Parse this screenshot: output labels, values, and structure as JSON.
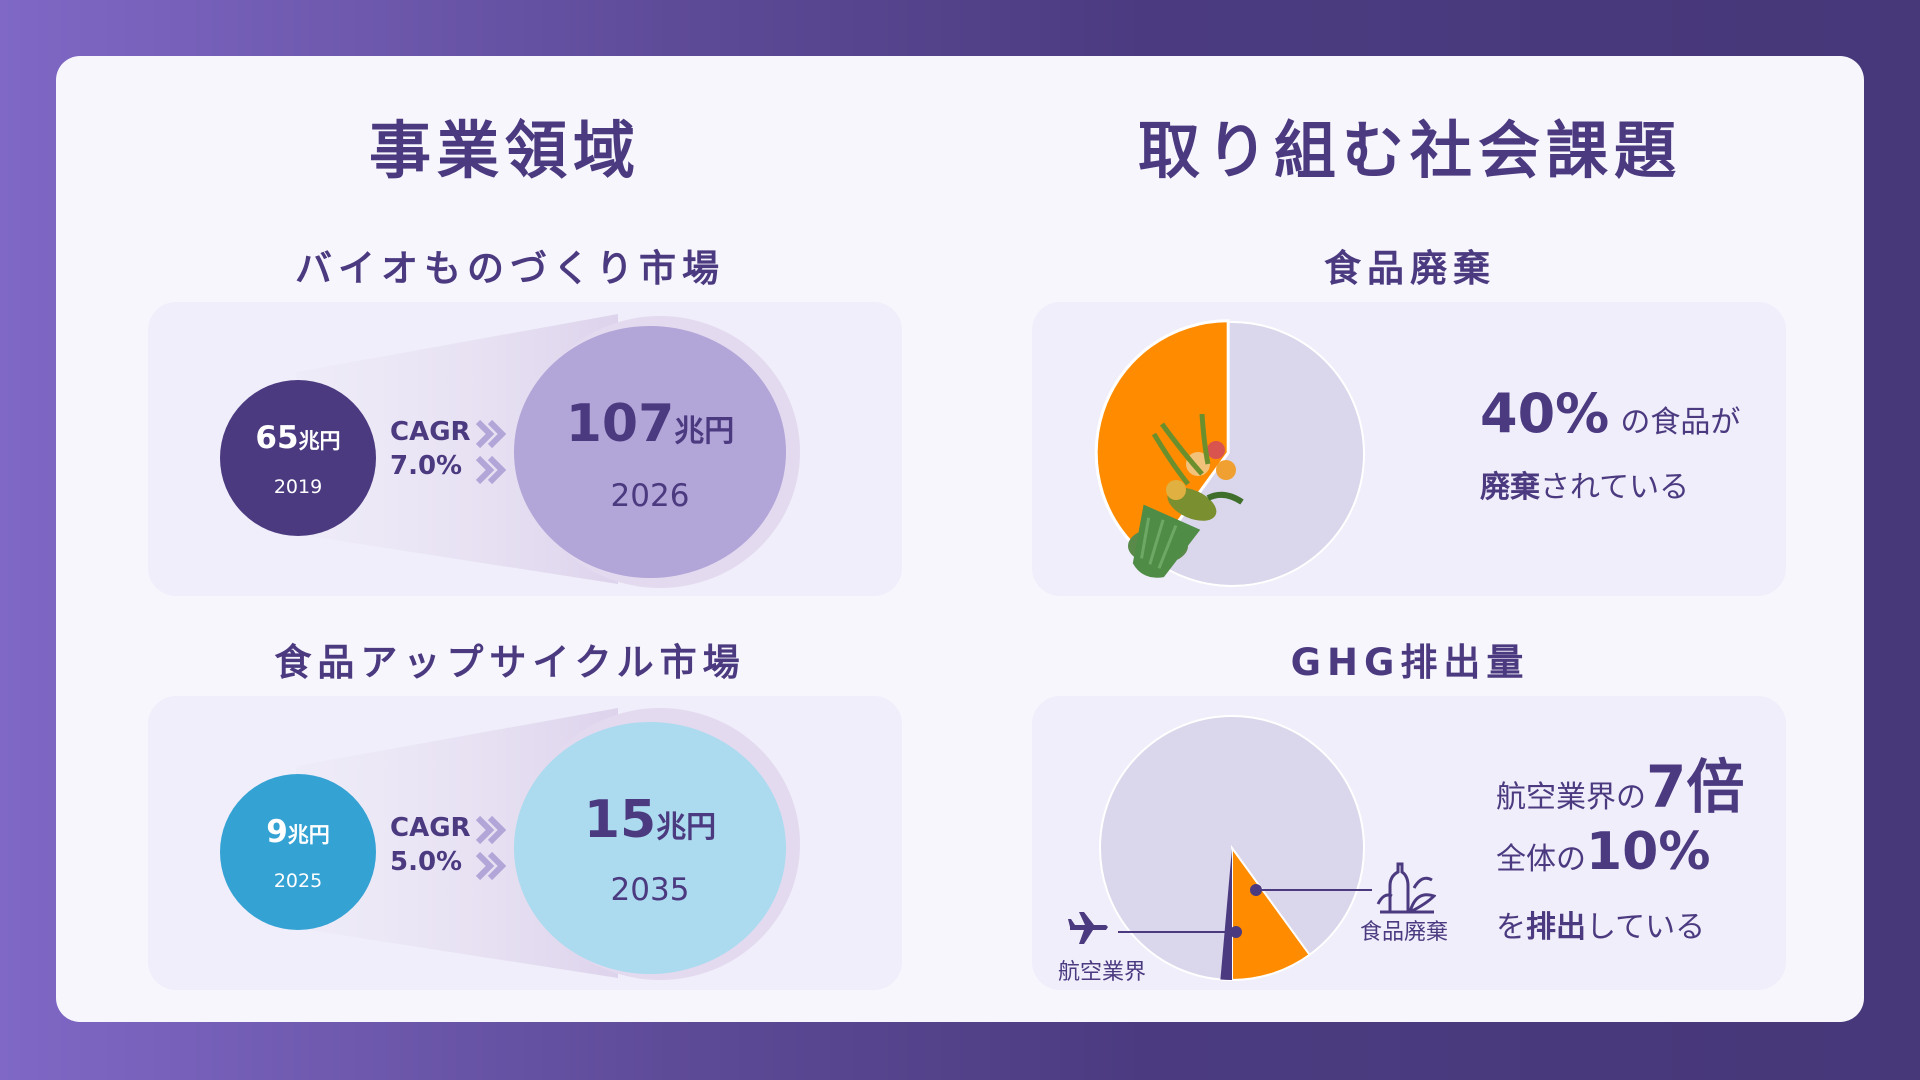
{
  "left": {
    "title": "事業領域",
    "bio": {
      "title": "バイオものづくり市場",
      "start_value": "65",
      "start_unit": "兆円",
      "start_year": "2019",
      "cagr_label": "CAGR",
      "cagr_value": "7.0%",
      "end_value": "107",
      "end_unit": "兆円",
      "end_year": "2026"
    },
    "upcycle": {
      "title": "食品アップサイクル市場",
      "start_value": "9",
      "start_unit": "兆円",
      "start_year": "2025",
      "cagr_label": "CAGR",
      "cagr_value": "5.0%",
      "end_value": "15",
      "end_unit": "兆円",
      "end_year": "2035"
    }
  },
  "right": {
    "title": "取り組む社会課題",
    "food_waste": {
      "title": "食品廃棄",
      "percent": "40%",
      "text1": "の食品が",
      "bold2": "廃棄",
      "text2": "されている",
      "share": 0.4
    },
    "ghg": {
      "title": "GHG排出量",
      "line1_text": "航空業界の",
      "line1_big": "7倍",
      "line2_text": "全体の",
      "line2_big": "10%",
      "line3_pre": "を",
      "line3_bold": "排出",
      "line3_post": "している",
      "label_aviation": "航空業界",
      "label_food": "食品廃棄",
      "food_share": 0.1,
      "aviation_share": 0.014
    }
  },
  "colors": {
    "dark_purple": "#4b3a80",
    "light_purple": "#b2a5d7",
    "cyan": "#35a2d4",
    "light_cyan": "#acdaee",
    "orange": "#ff8c00",
    "pie_gray": "#dad6ec"
  }
}
